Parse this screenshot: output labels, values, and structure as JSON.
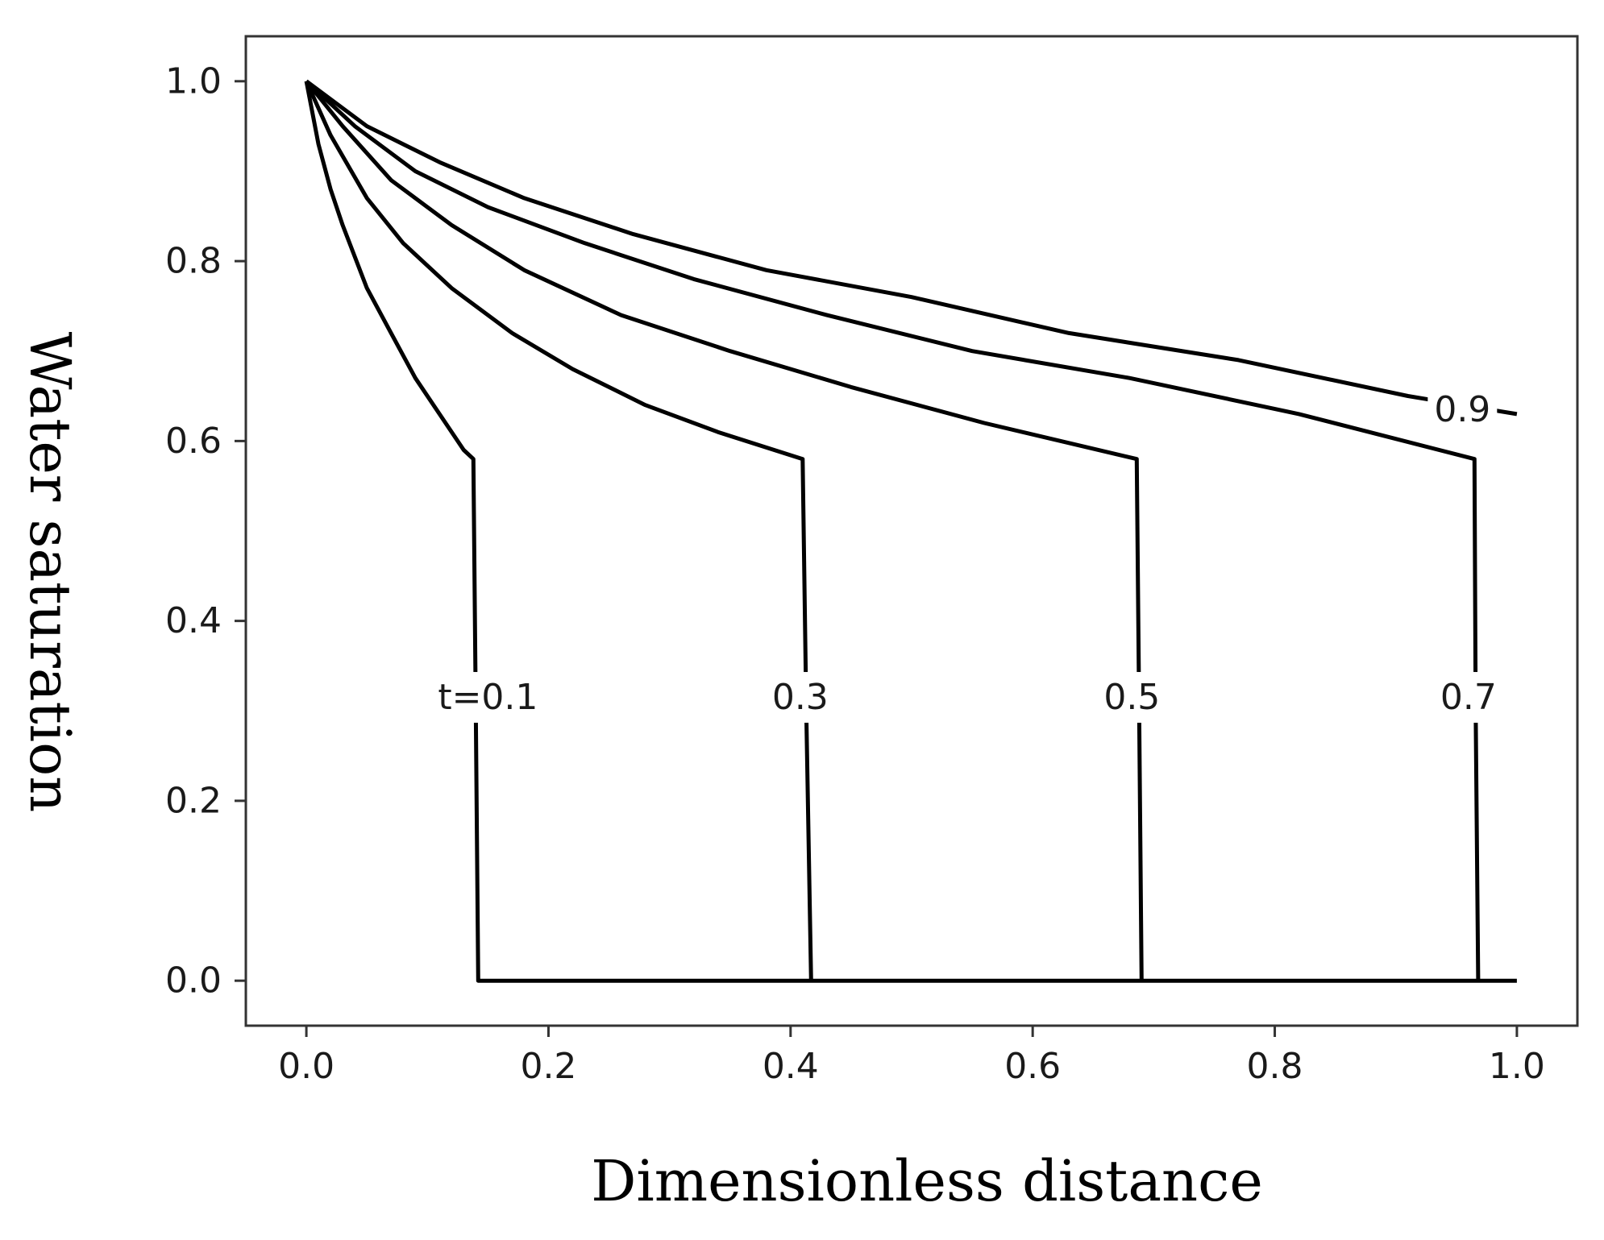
{
  "chart_data": {
    "type": "line",
    "title": "",
    "xlabel": "Dimensionless distance",
    "ylabel": "Water saturation",
    "xlim": [
      -0.05,
      1.05
    ],
    "ylim": [
      -0.05,
      1.05
    ],
    "xticks": [
      "0.0",
      "0.2",
      "0.4",
      "0.6",
      "0.8",
      "1.0"
    ],
    "yticks": [
      "0.0",
      "0.2",
      "0.4",
      "0.6",
      "0.8",
      "1.0"
    ],
    "grid": false,
    "legend": "none",
    "line_color": "#000000",
    "series": [
      {
        "name": "t=0.1",
        "x": [
          0.0,
          0.01,
          0.02,
          0.03,
          0.05,
          0.07,
          0.09,
          0.11,
          0.13,
          0.138,
          0.14,
          0.142,
          1.0
        ],
        "y": [
          1.0,
          0.93,
          0.88,
          0.84,
          0.77,
          0.72,
          0.67,
          0.63,
          0.59,
          0.58,
          0.3,
          0.0,
          0.0
        ]
      },
      {
        "name": "0.3",
        "x": [
          0.0,
          0.02,
          0.05,
          0.08,
          0.12,
          0.17,
          0.22,
          0.28,
          0.34,
          0.41,
          0.413,
          0.417
        ],
        "y": [
          1.0,
          0.94,
          0.87,
          0.82,
          0.77,
          0.72,
          0.68,
          0.64,
          0.61,
          0.58,
          0.3,
          0.0
        ]
      },
      {
        "name": "0.5",
        "x": [
          0.0,
          0.03,
          0.07,
          0.12,
          0.18,
          0.26,
          0.35,
          0.45,
          0.56,
          0.686,
          0.688,
          0.69
        ],
        "y": [
          1.0,
          0.95,
          0.89,
          0.84,
          0.79,
          0.74,
          0.7,
          0.66,
          0.62,
          0.58,
          0.3,
          0.0
        ]
      },
      {
        "name": "0.7",
        "x": [
          0.0,
          0.04,
          0.09,
          0.15,
          0.23,
          0.32,
          0.43,
          0.55,
          0.68,
          0.82,
          0.965,
          0.966,
          0.968
        ],
        "y": [
          1.0,
          0.95,
          0.9,
          0.86,
          0.82,
          0.78,
          0.74,
          0.7,
          0.67,
          0.63,
          0.58,
          0.3,
          0.0
        ]
      },
      {
        "name": "0.9",
        "x": [
          0.0,
          0.05,
          0.11,
          0.18,
          0.27,
          0.38,
          0.5,
          0.63,
          0.77,
          0.91,
          1.0
        ],
        "y": [
          1.0,
          0.95,
          0.91,
          0.87,
          0.83,
          0.79,
          0.76,
          0.72,
          0.69,
          0.65,
          0.63
        ]
      }
    ],
    "annotations": [
      {
        "text": "t=0.1",
        "x": 0.15,
        "y": 0.315
      },
      {
        "text": "0.3",
        "x": 0.408,
        "y": 0.315
      },
      {
        "text": "0.5",
        "x": 0.682,
        "y": 0.315
      },
      {
        "text": "0.7",
        "x": 0.96,
        "y": 0.315
      },
      {
        "text": "0.9",
        "x": 0.955,
        "y": 0.635
      }
    ]
  }
}
